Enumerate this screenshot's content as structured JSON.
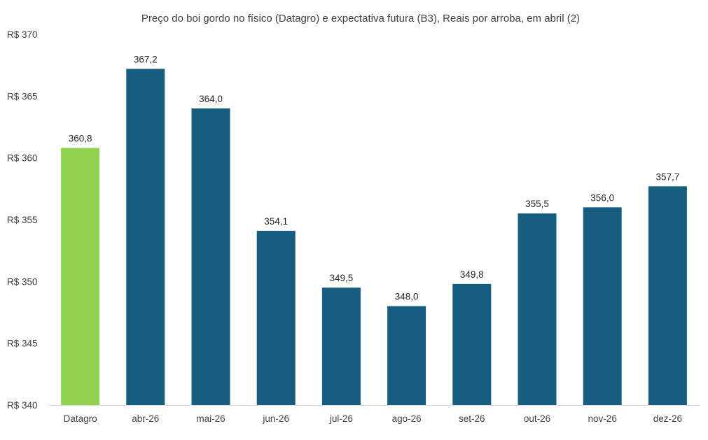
{
  "chart_data": {
    "type": "bar",
    "title": "Preço do boi gordo no físico (Datagro)  e expectativa futura (B3), Reais por arroba, em abril (2)",
    "xlabel": "",
    "ylabel": "",
    "ylim": [
      340,
      370
    ],
    "yticks": [
      340,
      345,
      350,
      355,
      360,
      365,
      370
    ],
    "ytick_labels": [
      "R$ 340",
      "R$ 345",
      "R$ 350",
      "R$ 355",
      "R$ 360",
      "R$ 365",
      "R$ 370"
    ],
    "grid": false,
    "legend": "none",
    "categories": [
      "Datagro",
      "abr-26",
      "mai-26",
      "jun-26",
      "jul-26",
      "ago-26",
      "set-26",
      "out-26",
      "nov-26",
      "dez-26"
    ],
    "values": [
      360.8,
      367.2,
      364.0,
      354.1,
      349.5,
      348.0,
      349.8,
      355.5,
      356.0,
      357.7
    ],
    "value_labels": [
      "360,8",
      "367,2",
      "364,0",
      "354,1",
      "349,5",
      "348,0",
      "349,8",
      "355,5",
      "356,0",
      "357,7"
    ],
    "bar_colors": [
      "#92d050",
      "#155e80",
      "#155e80",
      "#155e80",
      "#155e80",
      "#155e80",
      "#155e80",
      "#155e80",
      "#155e80",
      "#155e80"
    ]
  }
}
